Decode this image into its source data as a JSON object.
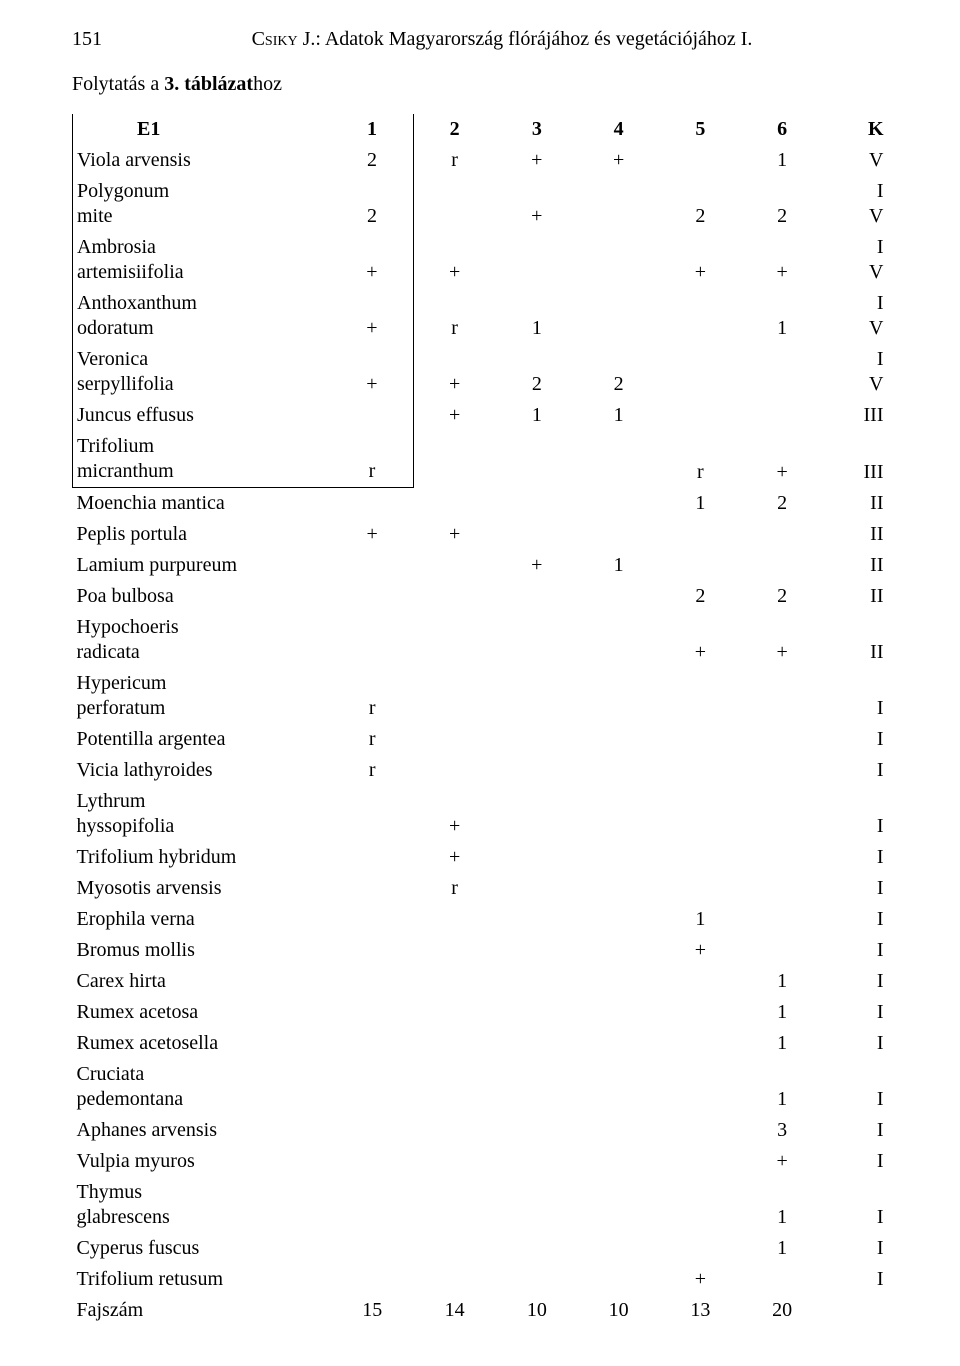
{
  "header": {
    "page_number": "151",
    "author": "Csiky J.",
    "title_rest": ": Adatok Magyarország flórájához és vegetációjához I."
  },
  "continuation": {
    "prefix": "Folytatás a ",
    "bold": "3. táblázat",
    "suffix": "hoz"
  },
  "table": {
    "header": {
      "label": "E1",
      "cols": [
        "1",
        "2",
        "3",
        "4",
        "5",
        "6"
      ],
      "k": "K"
    },
    "rows": [
      {
        "species": "Viola arvensis",
        "c": [
          "2",
          "r",
          "+",
          "+",
          "",
          "1"
        ],
        "k": "V",
        "boxed": true
      },
      {
        "species": "Polygonum mite",
        "c": [
          "2",
          "",
          "+",
          "",
          "2",
          "2"
        ],
        "k": "IV",
        "boxed": true,
        "k_override": "I<br>V"
      },
      {
        "species": "Ambrosia artemisiifolia",
        "c": [
          "+",
          "+",
          "",
          "",
          "+",
          "+"
        ],
        "k": "IV",
        "boxed": true,
        "k_override": "I<br>V"
      },
      {
        "species": "Anthoxanthum odoratum",
        "c": [
          "+",
          "r",
          "1",
          "",
          "",
          "1"
        ],
        "k": "IV",
        "boxed": true,
        "k_override": "I<br>V"
      },
      {
        "species": "Veronica serpyllifolia",
        "c": [
          "+",
          "+",
          "2",
          "2",
          "",
          ""
        ],
        "k": "IV",
        "boxed": true,
        "k_override": "I<br>V"
      },
      {
        "species": "Juncus effusus",
        "c": [
          "",
          "+",
          "1",
          "1",
          "",
          ""
        ],
        "k": "III",
        "boxed": true
      },
      {
        "species": "Trifolium micranthum",
        "c": [
          "r",
          "",
          "",
          "",
          "r",
          "+"
        ],
        "k": "III",
        "boxed": true,
        "boxed_end": true
      },
      {
        "species": "Moenchia mantica",
        "c": [
          "",
          "",
          "",
          "",
          "1",
          "2"
        ],
        "k": "II"
      },
      {
        "species": "Peplis portula",
        "c": [
          "+",
          "+",
          "",
          "",
          "",
          ""
        ],
        "k": "II"
      },
      {
        "species": "Lamium purpureum",
        "c": [
          "",
          "",
          "+",
          "1",
          "",
          ""
        ],
        "k": "II"
      },
      {
        "species": "Poa bulbosa",
        "c": [
          "",
          "",
          "",
          "",
          "2",
          "2"
        ],
        "k": "II"
      },
      {
        "species": "Hypochoeris radicata",
        "c": [
          "",
          "",
          "",
          "",
          "+",
          "+"
        ],
        "k": "II"
      },
      {
        "species": "Hypericum perforatum",
        "c": [
          "r",
          "",
          "",
          "",
          "",
          ""
        ],
        "k": "I"
      },
      {
        "species": "Potentilla argentea",
        "c": [
          "r",
          "",
          "",
          "",
          "",
          ""
        ],
        "k": "I"
      },
      {
        "species": "Vicia lathyroides",
        "c": [
          "r",
          "",
          "",
          "",
          "",
          ""
        ],
        "k": "I"
      },
      {
        "species": "Lythrum hyssopifolia",
        "c": [
          "",
          "+",
          "",
          "",
          "",
          ""
        ],
        "k": "I"
      },
      {
        "species": "Trifolium hybridum",
        "c": [
          "",
          "+",
          "",
          "",
          "",
          ""
        ],
        "k": "I"
      },
      {
        "species": "Myosotis arvensis",
        "c": [
          "",
          "r",
          "",
          "",
          "",
          ""
        ],
        "k": "I"
      },
      {
        "species": "Erophila verna",
        "c": [
          "",
          "",
          "",
          "",
          "1",
          ""
        ],
        "k": "I"
      },
      {
        "species": "Bromus mollis",
        "c": [
          "",
          "",
          "",
          "",
          "+",
          ""
        ],
        "k": "I"
      },
      {
        "species": "Carex hirta",
        "c": [
          "",
          "",
          "",
          "",
          "",
          "1"
        ],
        "k": "I"
      },
      {
        "species": "Rumex acetosa",
        "c": [
          "",
          "",
          "",
          "",
          "",
          "1"
        ],
        "k": "I"
      },
      {
        "species": "Rumex acetosella",
        "c": [
          "",
          "",
          "",
          "",
          "",
          "1"
        ],
        "k": "I"
      },
      {
        "species": "Cruciata pedemontana",
        "c": [
          "",
          "",
          "",
          "",
          "",
          "1"
        ],
        "k": "I"
      },
      {
        "species": "Aphanes arvensis",
        "c": [
          "",
          "",
          "",
          "",
          "",
          "3"
        ],
        "k": "I"
      },
      {
        "species": "Vulpia myuros",
        "c": [
          "",
          "",
          "",
          "",
          "",
          "+"
        ],
        "k": "I"
      },
      {
        "species": "Thymus glabrescens",
        "c": [
          "",
          "",
          "",
          "",
          "",
          "1"
        ],
        "k": "I"
      },
      {
        "species": "Cyperus fuscus",
        "c": [
          "",
          "",
          "",
          "",
          "",
          "1"
        ],
        "k": "I"
      },
      {
        "species": "Trifolium retusum",
        "c": [
          "",
          "",
          "",
          "",
          "+",
          ""
        ],
        "k": "I"
      },
      {
        "species": "Fajszám",
        "c": [
          "15",
          "14",
          "10",
          "10",
          "13",
          "20"
        ],
        "k": ""
      }
    ]
  }
}
